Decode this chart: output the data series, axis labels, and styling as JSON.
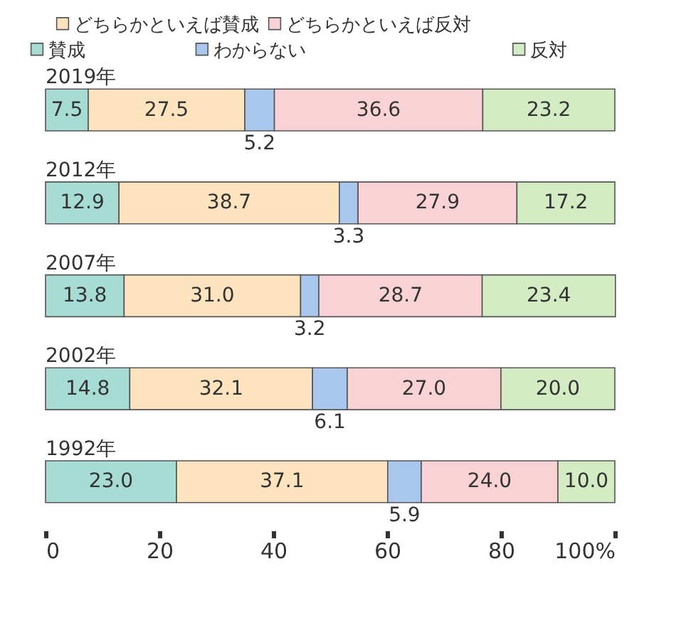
{
  "chart_data": {
    "type": "bar",
    "orientation": "horizontal",
    "stacked": true,
    "data_labels": true,
    "categories": [
      "2019年",
      "2012年",
      "2007年",
      "2002年",
      "1992年"
    ],
    "series": [
      {
        "name": "賛成",
        "color": "#a6dcd3",
        "values": [
          7.5,
          12.9,
          13.8,
          14.8,
          23.0
        ],
        "value_labels": [
          "7.5",
          "12.9",
          "13.8",
          "14.8",
          "23.0"
        ]
      },
      {
        "name": "どちらかといえば賛成",
        "color": "#fde4bf",
        "values": [
          27.5,
          38.7,
          31.0,
          32.1,
          37.1
        ],
        "value_labels": [
          "27.5",
          "38.7",
          "31.0",
          "32.1",
          "37.1"
        ]
      },
      {
        "name": "わからない",
        "color": "#a9c7ec",
        "values": [
          5.2,
          3.3,
          3.2,
          6.1,
          5.9
        ],
        "value_labels": [
          "5.2",
          "3.3",
          "3.2",
          "6.1",
          "5.9"
        ]
      },
      {
        "name": "どちらかといえば反対",
        "color": "#f9d2d6",
        "values": [
          36.6,
          27.9,
          28.7,
          27.0,
          24.0
        ],
        "value_labels": [
          "36.6",
          "27.9",
          "28.7",
          "27.0",
          "24.0"
        ]
      },
      {
        "name": "反対",
        "color": "#d3ecc3",
        "values": [
          23.2,
          17.2,
          23.4,
          20.0,
          10.0
        ],
        "value_labels": [
          "23.2",
          "17.2",
          "23.4",
          "20.0",
          "10.0"
        ]
      }
    ],
    "xlim": [
      0,
      100
    ],
    "xticks": [
      0,
      20,
      40,
      60,
      80,
      {
        "value": 100,
        "label": "100%"
      }
    ],
    "grid": false,
    "legend": "top"
  }
}
